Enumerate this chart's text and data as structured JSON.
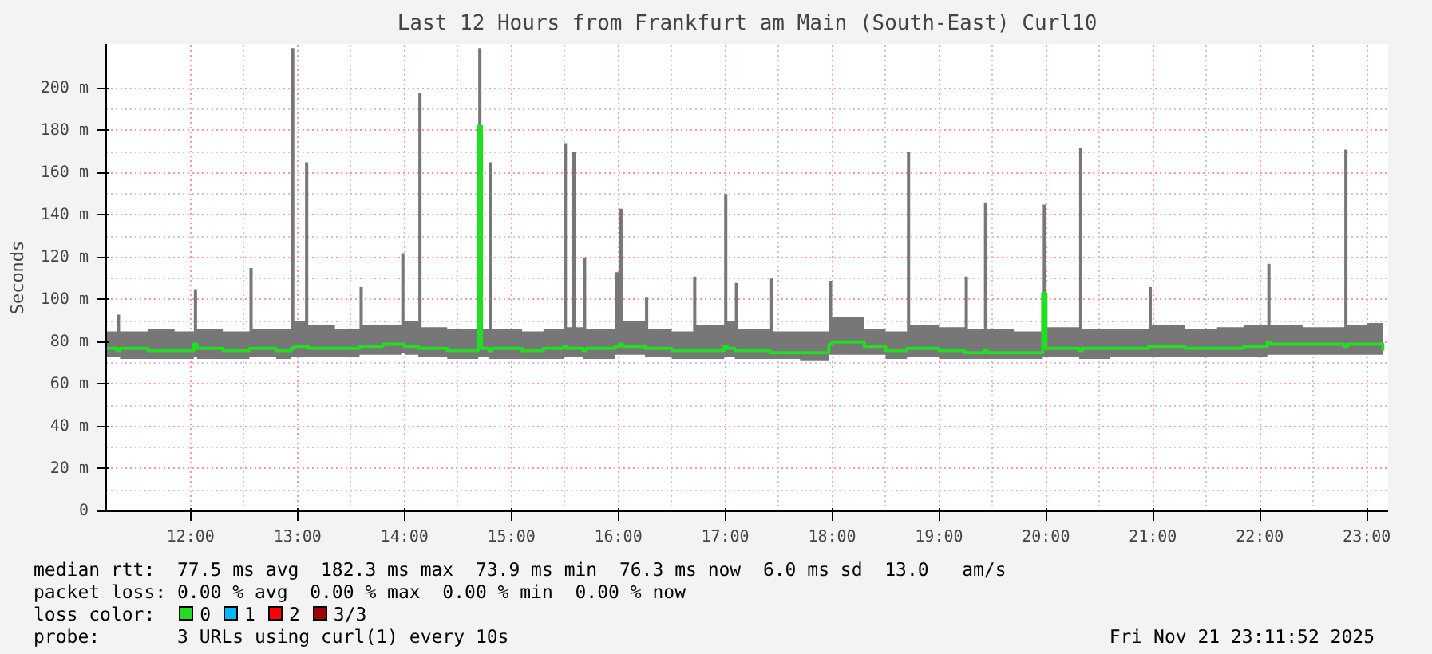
{
  "chart_data": {
    "type": "step",
    "title": "Last 12 Hours from Frankfurt am Main (South-East) Curl10",
    "ylabel": "Seconds",
    "x": [
      11.21,
      11.31,
      11.34,
      11.6,
      11.85,
      12.03,
      12.06,
      12.3,
      12.55,
      12.58,
      12.8,
      12.94,
      12.97,
      13.07,
      13.1,
      13.35,
      13.58,
      13.61,
      13.8,
      13.97,
      14.0,
      14.13,
      14.16,
      14.4,
      14.69,
      14.72,
      14.79,
      14.82,
      15.1,
      15.3,
      15.49,
      15.52,
      15.57,
      15.6,
      15.67,
      15.7,
      15.97,
      16.01,
      16.04,
      16.25,
      16.28,
      16.5,
      16.7,
      16.73,
      16.99,
      17.02,
      17.09,
      17.12,
      17.42,
      17.45,
      17.7,
      17.97,
      18.0,
      18.3,
      18.5,
      18.7,
      18.73,
      19.0,
      19.24,
      19.27,
      19.42,
      19.45,
      19.7,
      19.97,
      20.0,
      20.31,
      20.34,
      20.6,
      20.96,
      20.99,
      21.3,
      21.6,
      21.85,
      22.07,
      22.1,
      22.4,
      22.79,
      22.82,
      23.0,
      23.15
    ],
    "series": [
      {
        "name": "0",
        "color": "#22dd22",
        "values": [
          77,
          76,
          77,
          76,
          76,
          79,
          77,
          76,
          77,
          77,
          76,
          77,
          78,
          78,
          77,
          77,
          78,
          78,
          79,
          79,
          78,
          77,
          77,
          76,
          182,
          77,
          76,
          77,
          76,
          77,
          78,
          77,
          77,
          77,
          76,
          77,
          78,
          79,
          78,
          77,
          77,
          76,
          76,
          76,
          78,
          77,
          76,
          76,
          75,
          75,
          75,
          79,
          80,
          78,
          76,
          77,
          77,
          76,
          75,
          75,
          76,
          75,
          75,
          103,
          77,
          76,
          77,
          77,
          78,
          78,
          77,
          77,
          78,
          80,
          79,
          79,
          78,
          79,
          79,
          76
        ],
        "lower": [
          73,
          73,
          72,
          72,
          72,
          73,
          72,
          72,
          73,
          73,
          72,
          73,
          73,
          73,
          73,
          73,
          74,
          74,
          74,
          75,
          74,
          73,
          73,
          72,
          73,
          73,
          72,
          72,
          72,
          72,
          73,
          73,
          73,
          73,
          72,
          72,
          74,
          74,
          74,
          73,
          73,
          72,
          72,
          72,
          73,
          73,
          72,
          72,
          72,
          72,
          71,
          74,
          74,
          74,
          72,
          73,
          73,
          72,
          72,
          72,
          72,
          72,
          72,
          73,
          73,
          72,
          72,
          73,
          73,
          73,
          73,
          73,
          73,
          74,
          74,
          74,
          74,
          74,
          74,
          73
        ],
        "upper": [
          85,
          93,
          85,
          86,
          85,
          105,
          86,
          85,
          115,
          86,
          86,
          219,
          90,
          165,
          88,
          86,
          106,
          88,
          88,
          122,
          90,
          198,
          87,
          86,
          219,
          86,
          165,
          86,
          85,
          86,
          174,
          87,
          170,
          87,
          120,
          86,
          113,
          143,
          90,
          101,
          86,
          85,
          111,
          88,
          150,
          90,
          108,
          86,
          110,
          85,
          85,
          109,
          92,
          86,
          85,
          170,
          88,
          87,
          111,
          86,
          146,
          86,
          85,
          145,
          87,
          172,
          86,
          86,
          106,
          88,
          86,
          87,
          88,
          117,
          88,
          87,
          171,
          88,
          89,
          80
        ]
      },
      {
        "name": "1",
        "color": "#00b8ff",
        "values": [
          null,
          null,
          null,
          null,
          null,
          null,
          null,
          null,
          null,
          null,
          null,
          null,
          null,
          null,
          null,
          null,
          null,
          null,
          null,
          null,
          null,
          null,
          null,
          null,
          null,
          null,
          null,
          null,
          null,
          null,
          null,
          null,
          null,
          null,
          null,
          null,
          null,
          null,
          null,
          null,
          null,
          null,
          null,
          null,
          null,
          null,
          null,
          null,
          null,
          null,
          null,
          null,
          null,
          null,
          null,
          null,
          null,
          null,
          null,
          null,
          null,
          null,
          null,
          null,
          null,
          null,
          null,
          null,
          null,
          null,
          null,
          null,
          null,
          null,
          null,
          null,
          null,
          null,
          null,
          null
        ]
      },
      {
        "name": "2",
        "color": "#ff0000",
        "values": [
          null,
          null,
          null,
          null,
          null,
          null,
          null,
          null,
          null,
          null,
          null,
          null,
          null,
          null,
          null,
          null,
          null,
          null,
          null,
          null,
          null,
          null,
          null,
          null,
          null,
          null,
          null,
          null,
          null,
          null,
          null,
          null,
          null,
          null,
          null,
          null,
          null,
          null,
          null,
          null,
          null,
          null,
          null,
          null,
          null,
          null,
          null,
          null,
          null,
          null,
          null,
          null,
          null,
          null,
          null,
          null,
          null,
          null,
          null,
          null,
          null,
          null,
          null,
          null,
          null,
          null,
          null,
          null,
          null,
          null,
          null,
          null,
          null,
          null,
          null,
          null,
          null,
          null,
          null,
          null
        ]
      },
      {
        "name": "3/3",
        "color": "#a00000",
        "values": [
          null,
          null,
          null,
          null,
          null,
          null,
          null,
          null,
          null,
          null,
          null,
          null,
          null,
          null,
          null,
          null,
          null,
          null,
          null,
          null,
          null,
          null,
          null,
          null,
          null,
          null,
          null,
          null,
          null,
          null,
          null,
          null,
          null,
          null,
          null,
          null,
          null,
          null,
          null,
          null,
          null,
          null,
          null,
          null,
          null,
          null,
          null,
          null,
          null,
          null,
          null,
          null,
          null,
          null,
          null,
          null,
          null,
          null,
          null,
          null,
          null,
          null,
          null,
          null,
          null,
          null,
          null,
          null,
          null,
          null,
          null,
          null,
          null,
          null,
          null,
          null,
          null,
          null,
          null,
          null
        ]
      }
    ],
    "legend_title": "loss color:",
    "legend": "bottom",
    "xlim": [
      11.21,
      23.2
    ],
    "xticks": [
      {
        "value": 12,
        "label": "12:00"
      },
      {
        "value": 13,
        "label": "13:00"
      },
      {
        "value": 14,
        "label": "14:00"
      },
      {
        "value": 15,
        "label": "15:00"
      },
      {
        "value": 16,
        "label": "16:00"
      },
      {
        "value": 17,
        "label": "17:00"
      },
      {
        "value": 18,
        "label": "18:00"
      },
      {
        "value": 19,
        "label": "19:00"
      },
      {
        "value": 20,
        "label": "20:00"
      },
      {
        "value": 21,
        "label": "21:00"
      },
      {
        "value": 22,
        "label": "22:00"
      },
      {
        "value": 23,
        "label": "23:00"
      }
    ],
    "ylim": [
      0,
      221
    ],
    "yticks": [
      0,
      {
        "value": 20,
        "label": "20 m"
      },
      {
        "value": 40,
        "label": "40 m"
      },
      {
        "value": 60,
        "label": "60 m"
      },
      {
        "value": 80,
        "label": "80 m"
      },
      {
        "value": 100,
        "label": "100 m"
      },
      {
        "value": 120,
        "label": "120 m"
      },
      {
        "value": 140,
        "label": "140 m"
      },
      {
        "value": 160,
        "label": "160 m"
      },
      {
        "value": 180,
        "label": "180 m"
      },
      {
        "value": 200,
        "label": "200 m"
      }
    ],
    "grid": true,
    "annotations": [
      "median rtt:  77.5 ms avg  182.3 ms max  73.9 ms min  76.3 ms now  6.0 ms sd  13.0   am/s",
      "packet loss: 0.00 % avg  0.00 % max  0.00 % min  0.00 % now",
      "probe:       3 URLs using curl(1) every 10s",
      "Fri Nov 21 23:11:52 2025"
    ]
  }
}
